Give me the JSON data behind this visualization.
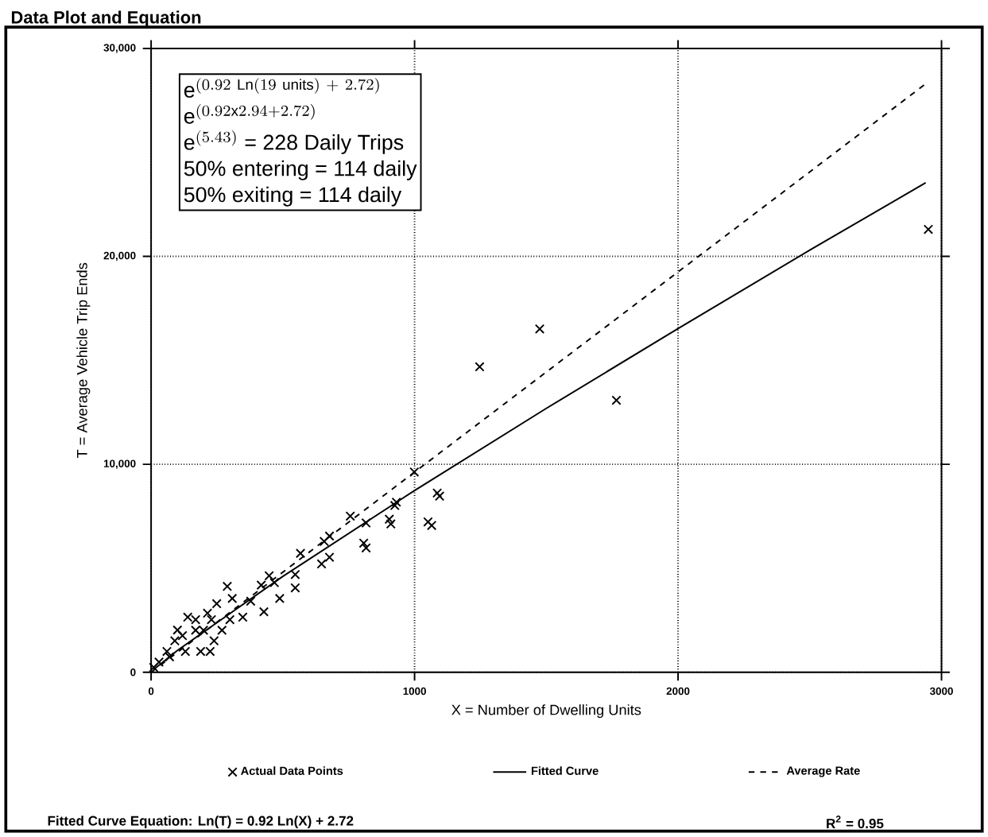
{
  "chart_data": {
    "type": "scatter",
    "title": "Data Plot and Equation",
    "xlabel": "X = Number of Dwelling Units",
    "ylabel": "T = Average Vehicle Trip Ends",
    "xlim": [
      0,
      3000
    ],
    "ylim": [
      0,
      30000
    ],
    "xticks": [
      0,
      1000,
      2000,
      3000
    ],
    "yticks": [
      0,
      {
        "value": 10000,
        "label": "10,000"
      },
      {
        "value": 20000,
        "label": "20,000"
      },
      {
        "value": 30000,
        "label": "30,000"
      }
    ],
    "grid": true,
    "legend": "bottom",
    "series": [
      {
        "name": "Actual Data Points",
        "marker": "cross",
        "color": "#000000",
        "x": [
          10,
          30,
          60,
          70,
          90,
          100,
          119,
          130,
          139,
          169,
          169,
          188,
          199,
          214,
          224,
          229,
          239,
          249,
          269,
          289,
          299,
          308,
          348,
          378,
          418,
          428,
          448,
          468,
          488,
          547,
          547,
          567,
          647,
          657,
          677,
          677,
          756,
          807,
          816,
          816,
          904,
          910,
          925,
          931,
          999,
          1051,
          1065,
          1086,
          1095,
          1247,
          1475,
          1766,
          2950
        ],
        "values": [
          230,
          490,
          1000,
          740,
          1510,
          2030,
          1760,
          1000,
          2650,
          2020,
          2530,
          1000,
          2020,
          2840,
          1000,
          2530,
          1510,
          3300,
          2020,
          4130,
          2530,
          3550,
          2650,
          3420,
          4190,
          2910,
          4640,
          4310,
          3550,
          4700,
          4060,
          5720,
          5210,
          6290,
          5530,
          6550,
          7510,
          6210,
          7180,
          5980,
          7360,
          7130,
          8020,
          8180,
          9630,
          7230,
          7060,
          8620,
          8470,
          14690,
          16510,
          13080,
          21300
        ]
      },
      {
        "name": "Fitted Curve",
        "type": "line",
        "line_style": "solid",
        "color": "#000000",
        "x": [
          10,
          100,
          500,
          1000,
          1500,
          2000,
          2500,
          2940
        ],
        "values": [
          130,
          1050,
          4610,
          8740,
          12690,
          16530,
          20300,
          23540
        ]
      },
      {
        "name": "Average Rate",
        "type": "line",
        "line_style": "dashed",
        "color": "#000000",
        "x": [
          0,
          2940
        ],
        "values": [
          0,
          28300
        ]
      }
    ],
    "annotations": [
      "\\mathrm{e}^{(0.92\\ \\mathrm{Ln}(19\\ \\mathrm{units})\\ +\\ 2.72)}",
      "\\mathrm{e}^{(0.92\\mathrm{x}2.94+2.72)}",
      "\\mathrm{e}^{(5.43)}\\mbox{ = 228 Daily Trips}",
      "50% entering = 114 daily",
      "50% exiting = 114 daily",
      "Fitted Curve Equation:  Ln(T) = 0.92 Ln(X) + 2.72",
      "R$^{2}$ = 0.95"
    ]
  }
}
